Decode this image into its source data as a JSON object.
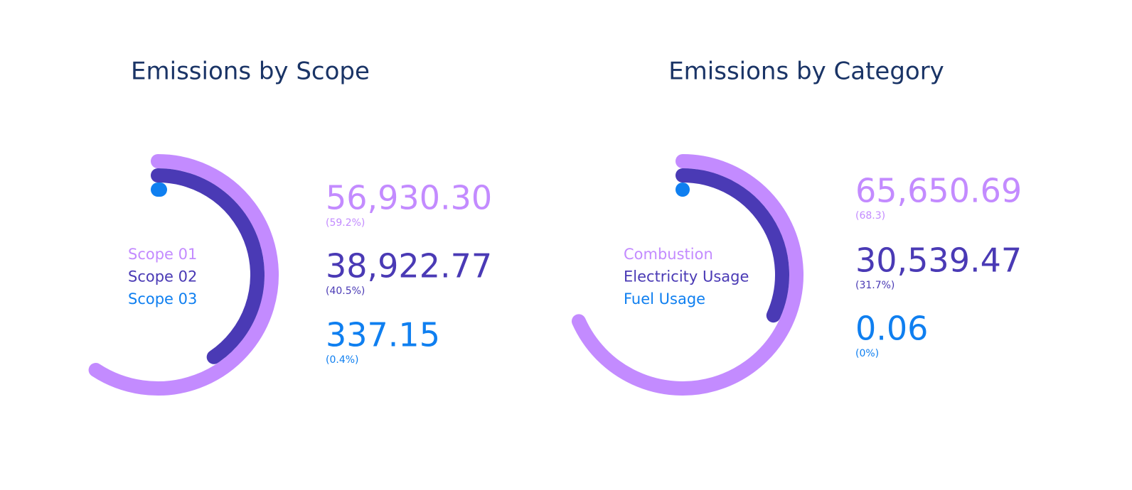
{
  "chart_data": [
    {
      "type": "radial_bar",
      "title": "Emissions by Scope",
      "categories": [
        "Scope 01",
        "Scope 02",
        "Scope 03"
      ],
      "colors": [
        "#c38bff",
        "#4a3ab5",
        "#0f7ff0"
      ],
      "values": [
        56930.3,
        38922.77,
        337.15
      ],
      "value_labels": [
        "56,930.30",
        "38,922.77",
        "337.15"
      ],
      "shares": [
        59.2,
        40.5,
        0.4
      ],
      "share_labels": [
        "(59.2%)",
        "(40.5%)",
        "(0.4%)"
      ]
    },
    {
      "type": "radial_bar",
      "title": "Emissions by Category",
      "categories": [
        "Combustion",
        "Electricity Usage",
        "Fuel Usage"
      ],
      "colors": [
        "#c38bff",
        "#4a3ab5",
        "#0f7ff0"
      ],
      "values": [
        65650.69,
        30539.47,
        0.06
      ],
      "value_labels": [
        "65,650.69",
        "30,539.47",
        "0.06"
      ],
      "shares": [
        68.3,
        31.7,
        0
      ],
      "share_labels": [
        "(68.3)",
        "(31.7%)",
        "(0%)"
      ]
    }
  ]
}
